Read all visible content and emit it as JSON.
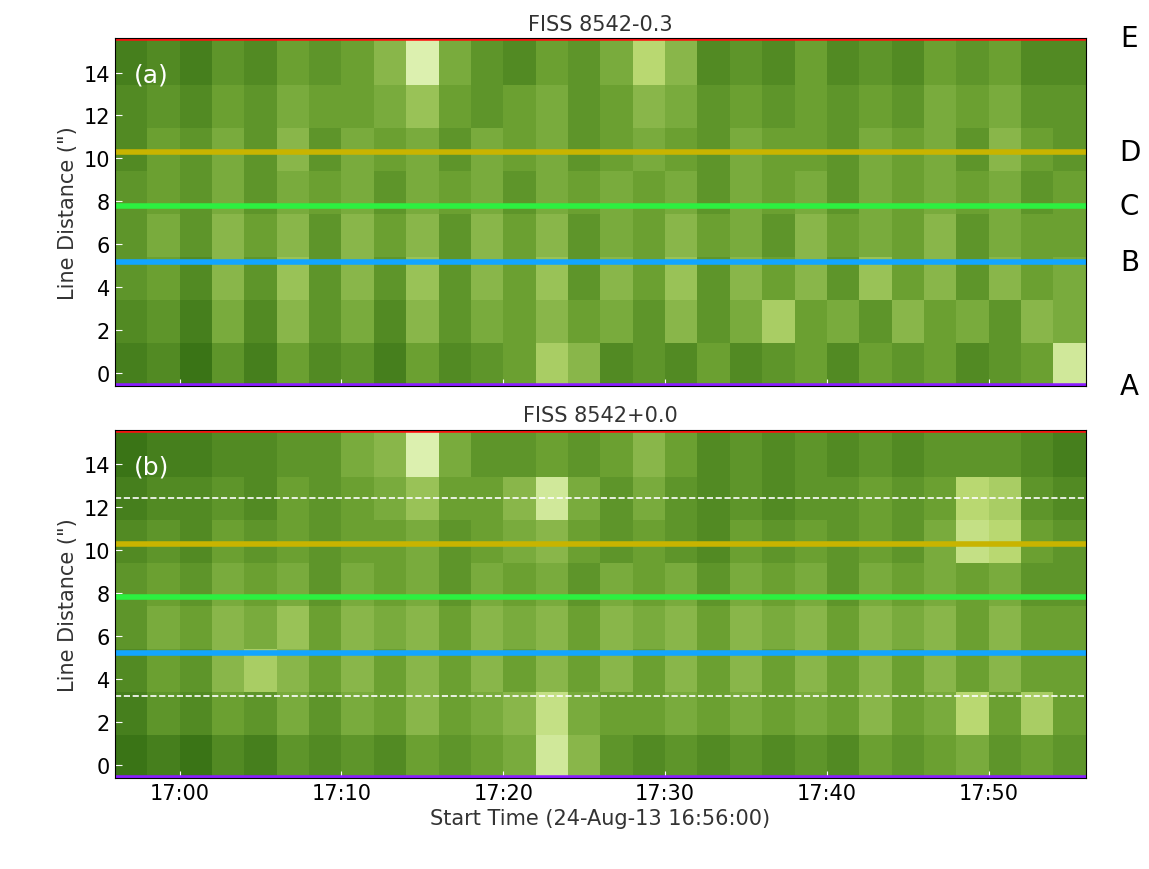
{
  "chart_data": [
    {
      "type": "heatmap",
      "title": "FISS 8542-0.3",
      "panel_label": "(a)",
      "ylabel": "Line Distance (\")",
      "xlim": [
        0,
        60
      ],
      "ylim": [
        -0.6,
        15.6
      ],
      "xticks": [
        {
          "value": 4,
          "label": "17:00"
        },
        {
          "value": 14,
          "label": "17:10"
        },
        {
          "value": 24,
          "label": "17:20"
        },
        {
          "value": 34,
          "label": "17:30"
        },
        {
          "value": 44,
          "label": "17:40"
        },
        {
          "value": 54,
          "label": "17:50"
        }
      ],
      "yticks": [
        0,
        2,
        4,
        6,
        8,
        10,
        12,
        14
      ],
      "tick_labels": "y",
      "clim": [
        0,
        1
      ],
      "x_edges": [
        0,
        2,
        4,
        6,
        8,
        10,
        12,
        14,
        16,
        18,
        20,
        22,
        24,
        26,
        28,
        30,
        32,
        34,
        36,
        38,
        40,
        42,
        44,
        46,
        48,
        50,
        52,
        54,
        56,
        58,
        60
      ],
      "y_edges": [
        -0.6,
        1.4,
        3.4,
        5.4,
        7.4,
        9.4,
        11.4,
        13.4,
        15.6
      ],
      "cells": [
        [
          0.35,
          0.4,
          0.3,
          0.45,
          0.35,
          0.5,
          0.4,
          0.45,
          0.35,
          0.5,
          0.4,
          0.45,
          0.5,
          0.7,
          0.6,
          0.4,
          0.45,
          0.4,
          0.5,
          0.4,
          0.45,
          0.5,
          0.4,
          0.5,
          0.45,
          0.5,
          0.4,
          0.45,
          0.5,
          0.85
        ],
        [
          0.4,
          0.45,
          0.35,
          0.55,
          0.4,
          0.6,
          0.45,
          0.55,
          0.4,
          0.6,
          0.45,
          0.55,
          0.5,
          0.6,
          0.5,
          0.55,
          0.45,
          0.6,
          0.45,
          0.55,
          0.7,
          0.5,
          0.55,
          0.45,
          0.6,
          0.5,
          0.55,
          0.45,
          0.6,
          0.55
        ],
        [
          0.45,
          0.5,
          0.4,
          0.6,
          0.45,
          0.65,
          0.45,
          0.6,
          0.45,
          0.65,
          0.45,
          0.6,
          0.5,
          0.65,
          0.45,
          0.6,
          0.5,
          0.65,
          0.45,
          0.6,
          0.5,
          0.6,
          0.45,
          0.65,
          0.5,
          0.6,
          0.45,
          0.6,
          0.5,
          0.55
        ],
        [
          0.45,
          0.55,
          0.45,
          0.6,
          0.5,
          0.6,
          0.45,
          0.6,
          0.5,
          0.6,
          0.45,
          0.6,
          0.5,
          0.6,
          0.45,
          0.55,
          0.5,
          0.6,
          0.5,
          0.55,
          0.45,
          0.6,
          0.5,
          0.55,
          0.5,
          0.6,
          0.45,
          0.55,
          0.5,
          0.5
        ],
        [
          0.45,
          0.5,
          0.45,
          0.55,
          0.45,
          0.55,
          0.5,
          0.55,
          0.45,
          0.55,
          0.5,
          0.55,
          0.45,
          0.55,
          0.5,
          0.55,
          0.5,
          0.55,
          0.45,
          0.55,
          0.5,
          0.55,
          0.45,
          0.55,
          0.5,
          0.55,
          0.5,
          0.55,
          0.45,
          0.5
        ],
        [
          0.4,
          0.5,
          0.45,
          0.55,
          0.45,
          0.6,
          0.45,
          0.55,
          0.5,
          0.55,
          0.45,
          0.55,
          0.5,
          0.55,
          0.45,
          0.5,
          0.55,
          0.5,
          0.45,
          0.55,
          0.5,
          0.5,
          0.45,
          0.55,
          0.5,
          0.55,
          0.45,
          0.6,
          0.5,
          0.45
        ],
        [
          0.4,
          0.45,
          0.4,
          0.5,
          0.45,
          0.55,
          0.5,
          0.5,
          0.55,
          0.65,
          0.5,
          0.45,
          0.5,
          0.55,
          0.45,
          0.5,
          0.6,
          0.55,
          0.45,
          0.5,
          0.45,
          0.5,
          0.45,
          0.5,
          0.45,
          0.55,
          0.5,
          0.55,
          0.45,
          0.45
        ],
        [
          0.35,
          0.4,
          0.35,
          0.45,
          0.4,
          0.5,
          0.45,
          0.5,
          0.6,
          0.9,
          0.55,
          0.45,
          0.4,
          0.5,
          0.45,
          0.55,
          0.75,
          0.6,
          0.4,
          0.45,
          0.4,
          0.5,
          0.4,
          0.45,
          0.4,
          0.5,
          0.45,
          0.5,
          0.4,
          0.4
        ]
      ],
      "lines": [
        {
          "label": "A",
          "y": -0.6,
          "color": "#8a1cff",
          "line_style": "solid"
        },
        {
          "label": "B",
          "y": 5.2,
          "color": "#12a5ff",
          "line_style": "solid"
        },
        {
          "label": "C",
          "y": 7.8,
          "color": "#2cf040",
          "line_style": "solid"
        },
        {
          "label": "D",
          "y": 10.3,
          "color": "#c8b400",
          "line_style": "solid"
        },
        {
          "label": "E",
          "y": 15.6,
          "color": "#ff1010",
          "line_style": "solid"
        }
      ]
    },
    {
      "type": "heatmap",
      "title": "FISS 8542+0.0",
      "panel_label": "(b)",
      "ylabel": "Line Distance (\")",
      "xlabel": "Start Time (24-Aug-13 16:56:00)",
      "xlim": [
        0,
        60
      ],
      "ylim": [
        -0.6,
        15.6
      ],
      "xticks": [
        {
          "value": 4,
          "label": "17:00"
        },
        {
          "value": 14,
          "label": "17:10"
        },
        {
          "value": 24,
          "label": "17:20"
        },
        {
          "value": 34,
          "label": "17:30"
        },
        {
          "value": 44,
          "label": "17:40"
        },
        {
          "value": 54,
          "label": "17:50"
        }
      ],
      "yticks": [
        0,
        2,
        4,
        6,
        8,
        10,
        12,
        14
      ],
      "clim": [
        0,
        1
      ],
      "x_edges": [
        0,
        2,
        4,
        6,
        8,
        10,
        12,
        14,
        16,
        18,
        20,
        22,
        24,
        26,
        28,
        30,
        32,
        34,
        36,
        38,
        40,
        42,
        44,
        46,
        48,
        50,
        52,
        54,
        56,
        58,
        60
      ],
      "y_edges": [
        -0.6,
        1.4,
        3.4,
        5.4,
        7.4,
        9.4,
        11.4,
        13.4,
        15.6
      ],
      "cells": [
        [
          0.3,
          0.35,
          0.3,
          0.4,
          0.35,
          0.45,
          0.4,
          0.45,
          0.4,
          0.5,
          0.45,
          0.5,
          0.55,
          0.85,
          0.6,
          0.45,
          0.4,
          0.45,
          0.4,
          0.45,
          0.4,
          0.45,
          0.4,
          0.5,
          0.45,
          0.5,
          0.55,
          0.45,
          0.5,
          0.45
        ],
        [
          0.35,
          0.45,
          0.4,
          0.5,
          0.45,
          0.55,
          0.45,
          0.55,
          0.5,
          0.6,
          0.5,
          0.55,
          0.6,
          0.8,
          0.55,
          0.5,
          0.5,
          0.55,
          0.5,
          0.55,
          0.5,
          0.55,
          0.5,
          0.6,
          0.5,
          0.55,
          0.75,
          0.5,
          0.7,
          0.5
        ],
        [
          0.4,
          0.5,
          0.45,
          0.6,
          0.7,
          0.6,
          0.5,
          0.6,
          0.5,
          0.6,
          0.5,
          0.6,
          0.5,
          0.6,
          0.5,
          0.6,
          0.5,
          0.6,
          0.5,
          0.6,
          0.5,
          0.6,
          0.5,
          0.6,
          0.5,
          0.6,
          0.5,
          0.6,
          0.5,
          0.5
        ],
        [
          0.45,
          0.55,
          0.5,
          0.6,
          0.55,
          0.65,
          0.5,
          0.6,
          0.55,
          0.6,
          0.5,
          0.6,
          0.55,
          0.6,
          0.5,
          0.6,
          0.55,
          0.6,
          0.5,
          0.6,
          0.55,
          0.6,
          0.5,
          0.6,
          0.55,
          0.6,
          0.5,
          0.6,
          0.5,
          0.5
        ],
        [
          0.45,
          0.5,
          0.45,
          0.55,
          0.5,
          0.55,
          0.45,
          0.55,
          0.5,
          0.55,
          0.45,
          0.55,
          0.5,
          0.55,
          0.45,
          0.55,
          0.5,
          0.55,
          0.45,
          0.55,
          0.5,
          0.55,
          0.45,
          0.55,
          0.5,
          0.55,
          0.5,
          0.55,
          0.45,
          0.45
        ],
        [
          0.4,
          0.45,
          0.4,
          0.5,
          0.45,
          0.5,
          0.45,
          0.5,
          0.5,
          0.55,
          0.45,
          0.5,
          0.55,
          0.6,
          0.5,
          0.45,
          0.5,
          0.45,
          0.4,
          0.5,
          0.45,
          0.5,
          0.45,
          0.5,
          0.45,
          0.55,
          0.8,
          0.75,
          0.5,
          0.45
        ],
        [
          0.35,
          0.4,
          0.4,
          0.45,
          0.4,
          0.5,
          0.45,
          0.5,
          0.55,
          0.65,
          0.5,
          0.5,
          0.6,
          0.85,
          0.55,
          0.45,
          0.55,
          0.45,
          0.4,
          0.45,
          0.4,
          0.45,
          0.45,
          0.5,
          0.45,
          0.5,
          0.75,
          0.7,
          0.45,
          0.4
        ],
        [
          0.3,
          0.35,
          0.35,
          0.4,
          0.4,
          0.45,
          0.45,
          0.55,
          0.6,
          0.9,
          0.55,
          0.45,
          0.45,
          0.5,
          0.45,
          0.5,
          0.6,
          0.5,
          0.4,
          0.45,
          0.4,
          0.45,
          0.4,
          0.45,
          0.4,
          0.45,
          0.45,
          0.45,
          0.4,
          0.35
        ]
      ],
      "lines": [
        {
          "y": -0.6,
          "color": "#8a1cff",
          "line_style": "solid"
        },
        {
          "y": 3.2,
          "color": "#ffffff",
          "line_style": "dashed"
        },
        {
          "y": 5.2,
          "color": "#12a5ff",
          "line_style": "solid"
        },
        {
          "y": 7.8,
          "color": "#2cf040",
          "line_style": "solid"
        },
        {
          "y": 10.3,
          "color": "#c8b400",
          "line_style": "solid"
        },
        {
          "y": 12.4,
          "color": "#ffffff",
          "line_style": "dashed"
        },
        {
          "y": 15.6,
          "color": "#ff1010",
          "line_style": "solid"
        }
      ]
    }
  ]
}
